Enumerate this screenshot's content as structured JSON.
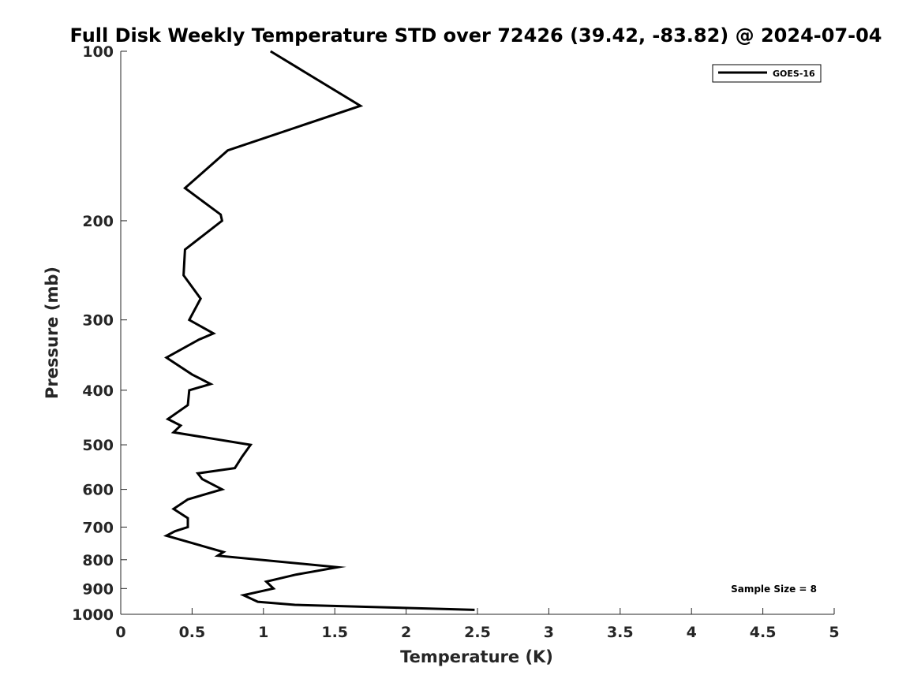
{
  "chart_data": {
    "type": "line",
    "title": "Full Disk Weekly Temperature STD over 72426 (39.42, -83.82) @ 2024-07-04",
    "xlabel": "Temperature (K)",
    "ylabel": "Pressure (mb)",
    "xlim": [
      0,
      5
    ],
    "ylim": [
      1000,
      100
    ],
    "y_scale": "log",
    "y_reversed": true,
    "grid": false,
    "legend_position": "top-right",
    "x_ticks": [
      0,
      0.5,
      1,
      1.5,
      2,
      2.5,
      3,
      3.5,
      4,
      4.5,
      5
    ],
    "x_tick_labels": [
      "0",
      "0.5",
      "1",
      "1.5",
      "2",
      "2.5",
      "3",
      "3.5",
      "4",
      "4.5",
      "5"
    ],
    "y_ticks": [
      100,
      200,
      300,
      400,
      500,
      600,
      700,
      800,
      900,
      1000
    ],
    "y_tick_labels": [
      "100",
      "200",
      "300",
      "400",
      "500",
      "600",
      "700",
      "800",
      "900",
      "1000"
    ],
    "series": [
      {
        "name": "GOES-16",
        "color": "#000000",
        "points": [
          [
            1.05,
            100
          ],
          [
            1.68,
            125
          ],
          [
            0.75,
            150
          ],
          [
            0.45,
            175
          ],
          [
            0.7,
            195
          ],
          [
            0.71,
            200
          ],
          [
            0.45,
            225
          ],
          [
            0.44,
            250
          ],
          [
            0.56,
            275
          ],
          [
            0.48,
            300
          ],
          [
            0.65,
            317
          ],
          [
            0.55,
            325
          ],
          [
            0.32,
            350
          ],
          [
            0.5,
            375
          ],
          [
            0.63,
            390
          ],
          [
            0.48,
            400
          ],
          [
            0.47,
            425
          ],
          [
            0.33,
            450
          ],
          [
            0.42,
            462
          ],
          [
            0.37,
            475
          ],
          [
            0.91,
            500
          ],
          [
            0.85,
            525
          ],
          [
            0.8,
            550
          ],
          [
            0.54,
            562
          ],
          [
            0.57,
            575
          ],
          [
            0.71,
            600
          ],
          [
            0.47,
            625
          ],
          [
            0.37,
            650
          ],
          [
            0.47,
            675
          ],
          [
            0.47,
            700
          ],
          [
            0.38,
            712
          ],
          [
            0.32,
            725
          ],
          [
            0.72,
            775
          ],
          [
            0.68,
            787
          ],
          [
            1.52,
            825
          ],
          [
            1.23,
            850
          ],
          [
            1.02,
            875
          ],
          [
            1.07,
            900
          ],
          [
            0.86,
            925
          ],
          [
            0.96,
            950
          ],
          [
            1.22,
            962
          ],
          [
            2.48,
            982
          ]
        ]
      }
    ],
    "annotations": [
      "Sample Size = 8"
    ]
  }
}
